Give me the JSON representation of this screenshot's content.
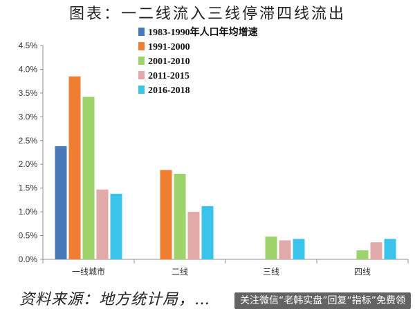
{
  "title": "图表：一二线流入三线停滞四线流出",
  "footer": {
    "source": "资料来源：地方统计局，…",
    "banner": "关注微信“老韩实盘”回复“指标”免费领"
  },
  "colors": [
    "#4a79b9",
    "#ef7e32",
    "#9ed26a",
    "#e2a9a9",
    "#3bc3ea"
  ],
  "chart_data": {
    "type": "bar",
    "title": "一二线流入三线停滞四线流出",
    "xlabel": "",
    "ylabel": "",
    "ylim": [
      0,
      4.5
    ],
    "yticks": [
      "0.0%",
      "0.5%",
      "1.0%",
      "1.5%",
      "2.0%",
      "2.5%",
      "3.0%",
      "3.5%",
      "4.0%",
      "4.5%"
    ],
    "categories": [
      "一线城市",
      "二线",
      "三线",
      "四线"
    ],
    "legend_position": "top-center",
    "grid": false,
    "series": [
      {
        "name": "1983-1990年人口年均增速",
        "values": [
          2.38,
          null,
          null,
          null
        ]
      },
      {
        "name": "1991-2000",
        "values": [
          3.85,
          1.88,
          null,
          null
        ]
      },
      {
        "name": "2001-2010",
        "values": [
          3.42,
          1.8,
          0.48,
          0.19
        ]
      },
      {
        "name": "2011-2015",
        "values": [
          1.47,
          1.0,
          0.4,
          0.36
        ]
      },
      {
        "name": "2016-2018",
        "values": [
          1.38,
          1.12,
          0.43,
          0.43
        ]
      }
    ]
  }
}
